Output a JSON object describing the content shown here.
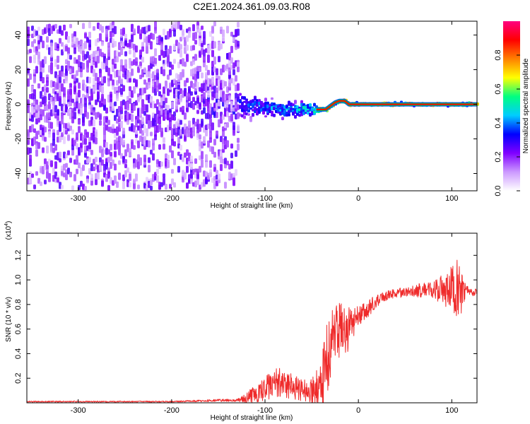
{
  "title": "C2E1.2024.361.09.03.R08",
  "chart_data": [
    {
      "type": "heatmap",
      "xlabel": "Height of straight line (km)",
      "ylabel": "Frequency (Hz)",
      "xlim": [
        -355,
        127
      ],
      "ylim": [
        -50,
        48
      ],
      "xticks": [
        -300,
        -200,
        -100,
        0,
        100
      ],
      "yticks": [
        -40,
        -20,
        0,
        20,
        40
      ],
      "colorbar": {
        "label": "Normalized spectral amplitude",
        "range": [
          0,
          1
        ],
        "ticks": [
          "0.0",
          "0.2",
          "0.4",
          "0.6",
          "0.8"
        ],
        "colors": [
          "#ffffff",
          "#cc99ff",
          "#8000ff",
          "#0000ff",
          "#00ccff",
          "#00ff80",
          "#ffff00",
          "#ff8000",
          "#ff0000",
          "#ff0080"
        ]
      },
      "ridge": {
        "x": [
          -355,
          -300,
          -250,
          -200,
          -150,
          -120,
          -100,
          -80,
          -60,
          -50,
          -45,
          -40,
          -35,
          -30,
          -25,
          -20,
          -15,
          -10,
          0,
          50,
          100,
          127
        ],
        "frequency": [
          0,
          0,
          0,
          0,
          0,
          -1,
          -2,
          -3,
          -3,
          -3,
          -3,
          -3,
          -3,
          -1,
          1,
          2,
          2,
          0,
          0,
          0,
          0,
          0
        ],
        "peak_amplitude": [
          0.25,
          0.3,
          0.3,
          0.3,
          0.35,
          0.4,
          0.45,
          0.5,
          0.55,
          0.6,
          0.9,
          0.95,
          0.95,
          0.9,
          0.85,
          0.95,
          0.95,
          0.95,
          0.95,
          0.95,
          0.95,
          0.95
        ],
        "spread_hz": [
          40,
          40,
          40,
          35,
          14,
          9,
          7,
          6,
          5,
          5,
          2,
          1,
          1,
          1,
          1,
          1,
          1,
          1,
          1,
          1,
          1,
          1
        ]
      }
    },
    {
      "type": "line",
      "xlabel": "Height of straight line (km)",
      "ylabel": "SNR (10 * v/v)",
      "y_multiplier": "(x10",
      "y_multiplier_exp": "4",
      "xlim": [
        -355,
        127
      ],
      "ylim": [
        0,
        1.38
      ],
      "xticks": [
        -300,
        -200,
        -100,
        0,
        100
      ],
      "yticks": [
        "0.2",
        "0.4",
        "0.6",
        "0.8",
        "1.0",
        "1.2"
      ],
      "series": [
        {
          "color": "#ef2b2b",
          "x": [
            -355,
            -300,
            -250,
            -200,
            -150,
            -130,
            -120,
            -110,
            -100,
            -90,
            -80,
            -70,
            -60,
            -50,
            -40,
            -35,
            -30,
            -25,
            -20,
            -15,
            -10,
            -5,
            0,
            10,
            20,
            30,
            40,
            50,
            60,
            70,
            80,
            90,
            100,
            105,
            110,
            115,
            120,
            127
          ],
          "y": [
            0.01,
            0.01,
            0.01,
            0.01,
            0.02,
            0.02,
            0.04,
            0.07,
            0.12,
            0.16,
            0.16,
            0.13,
            0.1,
            0.09,
            0.15,
            0.3,
            0.45,
            0.55,
            0.6,
            0.58,
            0.6,
            0.65,
            0.7,
            0.76,
            0.83,
            0.87,
            0.89,
            0.9,
            0.91,
            0.92,
            0.92,
            0.92,
            0.93,
            0.95,
            0.9,
            0.92,
            0.9,
            0.9
          ],
          "noise_amplitude": [
            0.005,
            0.005,
            0.005,
            0.005,
            0.01,
            0.01,
            0.04,
            0.08,
            0.1,
            0.12,
            0.12,
            0.1,
            0.09,
            0.1,
            0.2,
            0.3,
            0.3,
            0.25,
            0.22,
            0.22,
            0.18,
            0.12,
            0.1,
            0.08,
            0.05,
            0.04,
            0.04,
            0.04,
            0.05,
            0.06,
            0.08,
            0.12,
            0.18,
            0.25,
            0.2,
            0.04,
            0.03,
            0.03
          ]
        }
      ]
    }
  ]
}
